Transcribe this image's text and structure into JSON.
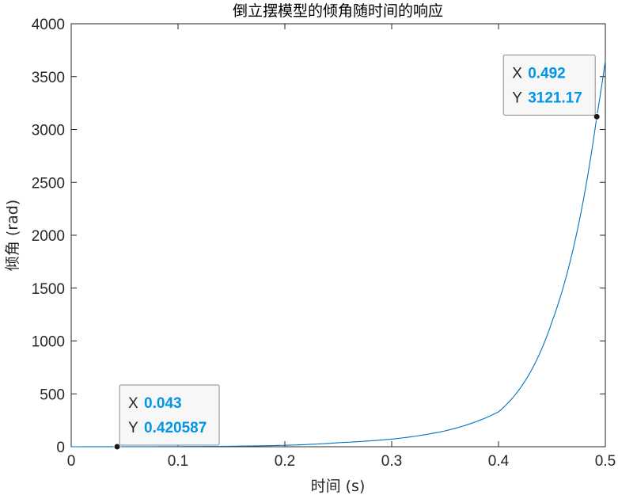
{
  "chart_data": {
    "type": "line",
    "title": "倒立摆模型的倾角随时间的响应",
    "xlabel": "时间 (s)",
    "ylabel": "倾角 (rad)",
    "xlim": [
      0,
      0.5
    ],
    "ylim": [
      0,
      4000
    ],
    "xticks": [
      "0",
      "0.1",
      "0.2",
      "0.3",
      "0.4",
      "0.5"
    ],
    "yticks": [
      "0",
      "500",
      "1000",
      "1500",
      "2000",
      "2500",
      "3000",
      "3500",
      "4000"
    ],
    "grid": false,
    "series": [
      {
        "color": "#0072BD",
        "x": [
          0,
          0.05,
          0.1,
          0.15,
          0.2,
          0.25,
          0.3,
          0.35,
          0.4,
          0.45,
          0.492,
          0.5
        ],
        "y": [
          0,
          0.46,
          1.7,
          5.0,
          13.7,
          38,
          72,
          150,
          330,
          1180,
          3121.17,
          3650
        ]
      }
    ],
    "datatips": [
      {
        "x_label": "X",
        "x_value": "0.043",
        "y_label": "Y",
        "y_value": "0.420587",
        "x": 0.043,
        "y": 0.420587
      },
      {
        "x_label": "X",
        "x_value": "0.492",
        "y_label": "Y",
        "y_value": "3121.17",
        "x": 0.492,
        "y": 3121.17
      }
    ],
    "colors": {
      "line": "#0072BD",
      "tip_value": "#0095E6",
      "marker": "#1a1a1a"
    }
  }
}
